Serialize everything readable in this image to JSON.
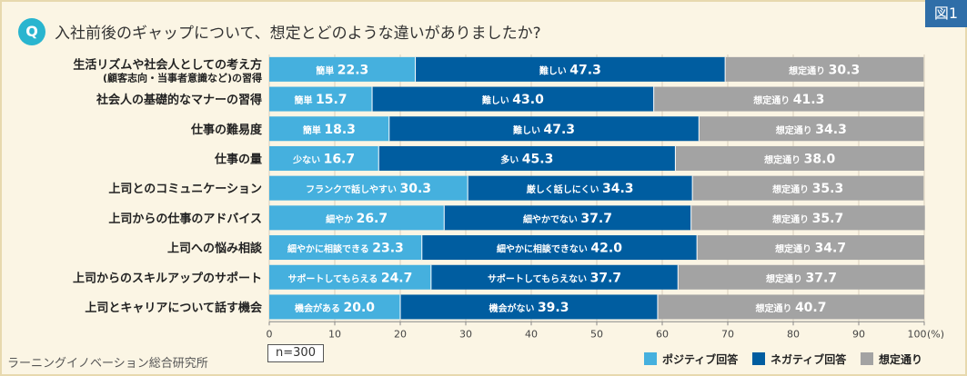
{
  "figure_label": "図1",
  "q_mark": "Q",
  "question": "入社前後のギャップについて、想定とどのような違いがありましたか?",
  "source": "ラーニングイノベーション総合研究所",
  "sample": "n=300",
  "colors": {
    "positive": "#45b0de",
    "negative": "#005da0",
    "neutral": "#a3a3a3"
  },
  "chart_data": {
    "type": "bar",
    "orientation": "horizontal",
    "stacked": true,
    "xlim": [
      0,
      100
    ],
    "xticks": [
      "0",
      "10",
      "20",
      "30",
      "40",
      "50",
      "60",
      "70",
      "80",
      "90",
      "100"
    ],
    "unit_suffix": "(%)",
    "legend": [
      "ポジティブ回答",
      "ネガティブ回答",
      "想定通り"
    ],
    "categories": [
      {
        "label": "生活リズムや社会人としての考え方",
        "sub": "(顧客志向・当事者意識など)の習得",
        "segments": [
          {
            "label": "簡単",
            "value": 22.3
          },
          {
            "label": "難しい",
            "value": 47.3
          },
          {
            "label": "想定通り",
            "value": 30.3
          }
        ]
      },
      {
        "label": "社会人の基礎的なマナーの習得",
        "segments": [
          {
            "label": "簡単",
            "value": 15.7
          },
          {
            "label": "難しい",
            "value": 43.0
          },
          {
            "label": "想定通り",
            "value": 41.3
          }
        ]
      },
      {
        "label": "仕事の難易度",
        "segments": [
          {
            "label": "簡単",
            "value": 18.3
          },
          {
            "label": "難しい",
            "value": 47.3
          },
          {
            "label": "想定通り",
            "value": 34.3
          }
        ]
      },
      {
        "label": "仕事の量",
        "segments": [
          {
            "label": "少ない",
            "value": 16.7
          },
          {
            "label": "多い",
            "value": 45.3
          },
          {
            "label": "想定通り",
            "value": 38.0
          }
        ]
      },
      {
        "label": "上司とのコミュニケーション",
        "segments": [
          {
            "label": "フランクで話しやすい",
            "value": 30.3
          },
          {
            "label": "厳しく話しにくい",
            "value": 34.3
          },
          {
            "label": "想定通り",
            "value": 35.3
          }
        ]
      },
      {
        "label": "上司からの仕事のアドバイス",
        "segments": [
          {
            "label": "細やか",
            "value": 26.7
          },
          {
            "label": "細やかでない",
            "value": 37.7
          },
          {
            "label": "想定通り",
            "value": 35.7
          }
        ]
      },
      {
        "label": "上司への悩み相談",
        "segments": [
          {
            "label": "細やかに相談できる",
            "value": 23.3
          },
          {
            "label": "細やかに相談できない",
            "value": 42.0
          },
          {
            "label": "想定通り",
            "value": 34.7
          }
        ]
      },
      {
        "label": "上司からのスキルアップのサポート",
        "segments": [
          {
            "label": "サポートしてもらえる",
            "value": 24.7
          },
          {
            "label": "サポートしてもらえない",
            "value": 37.7
          },
          {
            "label": "想定通り",
            "value": 37.7
          }
        ]
      },
      {
        "label": "上司とキャリアについて話す機会",
        "segments": [
          {
            "label": "機会がある",
            "value": 20.0
          },
          {
            "label": "機会がない",
            "value": 39.3
          },
          {
            "label": "想定通り",
            "value": 40.7
          }
        ]
      }
    ]
  }
}
